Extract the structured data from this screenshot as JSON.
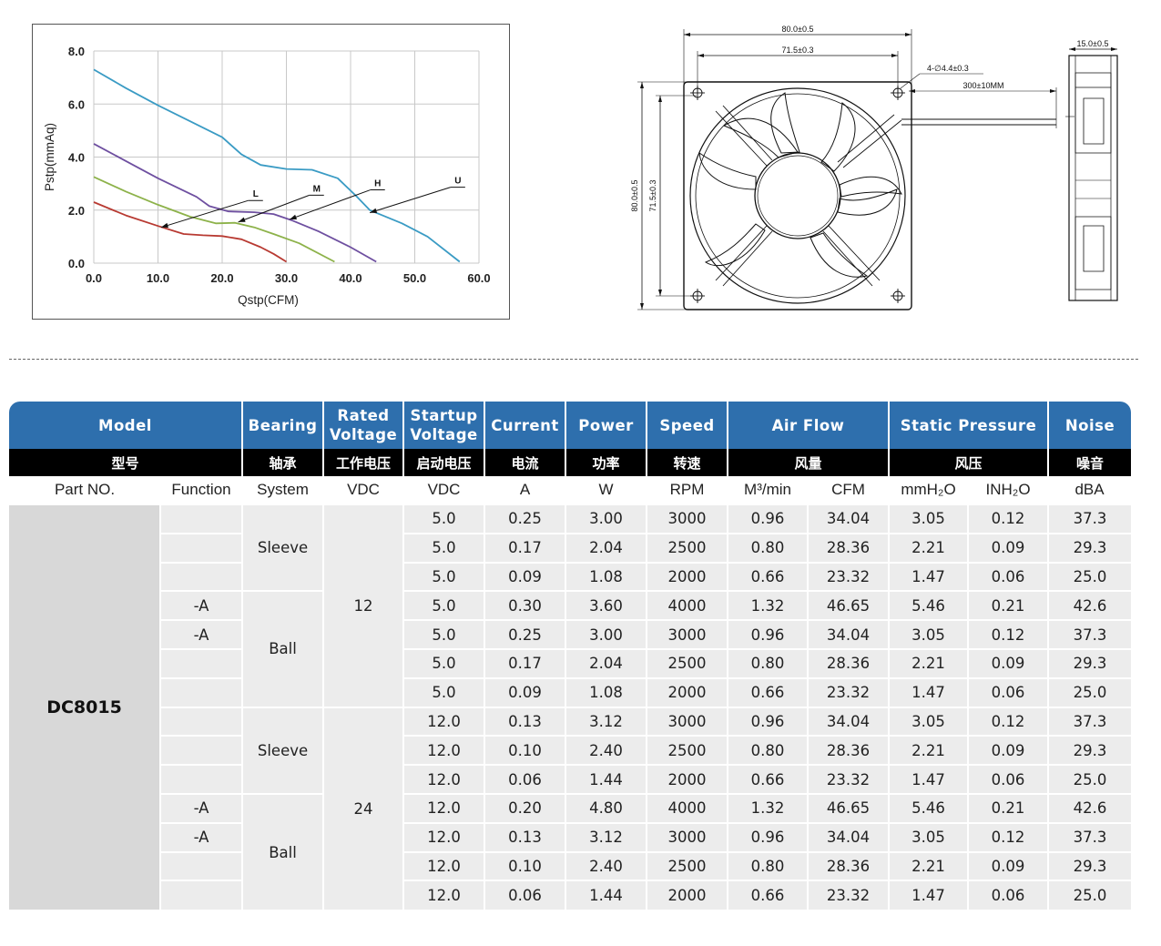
{
  "chart_data": {
    "type": "line",
    "title": "",
    "xlabel": "Qstp(CFM)",
    "ylabel": "Pstp(mmAq)",
    "xlim": [
      0,
      60
    ],
    "ylim": [
      0,
      8
    ],
    "x_ticks": [
      "0.0",
      "10.0",
      "20.0",
      "30.0",
      "40.0",
      "50.0",
      "60.0"
    ],
    "y_ticks": [
      "0.0",
      "2.0",
      "4.0",
      "6.0",
      "8.0"
    ],
    "grid": true,
    "series": [
      {
        "name": "U",
        "label": "U",
        "color": "#3a9bc4",
        "label_at": [
          57,
          3.0
        ],
        "arrow_to": [
          43,
          1.9
        ],
        "points": [
          [
            0,
            7.3
          ],
          [
            5,
            6.6
          ],
          [
            10,
            5.95
          ],
          [
            15,
            5.35
          ],
          [
            20,
            4.75
          ],
          [
            23,
            4.1
          ],
          [
            26,
            3.7
          ],
          [
            30,
            3.55
          ],
          [
            34,
            3.52
          ],
          [
            38,
            3.2
          ],
          [
            41,
            2.5
          ],
          [
            43,
            2.0
          ],
          [
            48,
            1.5
          ],
          [
            52,
            1.0
          ],
          [
            57,
            0.05
          ]
        ]
      },
      {
        "name": "H",
        "label": "H",
        "color": "#6e4fa0",
        "label_at": [
          44.5,
          2.9
        ],
        "arrow_to": [
          30.5,
          1.65
        ],
        "points": [
          [
            0,
            4.5
          ],
          [
            5,
            3.85
          ],
          [
            10,
            3.2
          ],
          [
            16,
            2.5
          ],
          [
            18,
            2.15
          ],
          [
            21,
            1.95
          ],
          [
            25,
            1.92
          ],
          [
            28,
            1.85
          ],
          [
            31,
            1.6
          ],
          [
            35,
            1.2
          ],
          [
            40,
            0.6
          ],
          [
            44,
            0.05
          ]
        ]
      },
      {
        "name": "M",
        "label": "M",
        "color": "#8db24a",
        "label_at": [
          35,
          2.7
        ],
        "arrow_to": [
          22.5,
          1.55
        ],
        "points": [
          [
            0,
            3.25
          ],
          [
            5,
            2.7
          ],
          [
            10,
            2.2
          ],
          [
            15,
            1.75
          ],
          [
            19,
            1.5
          ],
          [
            22,
            1.52
          ],
          [
            25,
            1.35
          ],
          [
            28,
            1.1
          ],
          [
            32,
            0.75
          ],
          [
            37.5,
            0.05
          ]
        ]
      },
      {
        "name": "L",
        "label": "L",
        "color": "#b83a32",
        "label_at": [
          25.5,
          2.5
        ],
        "arrow_to": [
          10.5,
          1.35
        ],
        "points": [
          [
            0,
            2.3
          ],
          [
            5,
            1.8
          ],
          [
            10,
            1.4
          ],
          [
            14,
            1.1
          ],
          [
            17,
            1.05
          ],
          [
            20,
            1.02
          ],
          [
            23,
            0.9
          ],
          [
            26,
            0.6
          ],
          [
            28,
            0.35
          ],
          [
            30,
            0.05
          ]
        ]
      }
    ]
  },
  "drawing": {
    "outer_dim": "80.0±0.5",
    "hole_spacing": "71.5±0.3",
    "hole_callout": "4-∅4.4±0.3",
    "lead_length": "300±10MM",
    "thickness": "15.0±0.5",
    "side_outer": "80.0±0.5",
    "side_spacing": "71.5±0.3"
  },
  "table": {
    "headers": [
      "Model",
      "Bearing",
      "Rated Voltage",
      "Startup Voltage",
      "Current",
      "Power",
      "Speed",
      "Air Flow",
      "Static Pressure",
      "Noise"
    ],
    "headers_cn": [
      "型号",
      "轴承",
      "工作电压",
      "启动电压",
      "电流",
      "功率",
      "转速",
      "风量",
      "风压",
      "噪音"
    ],
    "units": {
      "part_no": "Part NO.",
      "function": "Function",
      "system": "System",
      "rated_vdc": "VDC",
      "startup_vdc": "VDC",
      "current": "A",
      "power": "W",
      "speed": "RPM",
      "airflow_m3": "M³/min",
      "airflow_cfm": "CFM",
      "pressure_mm": "mmH₂O",
      "pressure_in": "INH₂O",
      "noise": "dBA"
    },
    "model": "DC8015",
    "groups": [
      {
        "bearing": "Sleeve",
        "rated": "12"
      },
      {
        "bearing": "Ball",
        "rated": ""
      },
      {
        "bearing": "Sleeve",
        "rated": "24"
      },
      {
        "bearing": "Ball",
        "rated": ""
      }
    ],
    "rows": [
      {
        "fn": "",
        "startup": "5.0",
        "current": "0.25",
        "power": "3.00",
        "speed": "3000",
        "m3": "0.96",
        "cfm": "34.04",
        "mm": "3.05",
        "inch": "0.12",
        "dba": "37.3"
      },
      {
        "fn": "",
        "startup": "5.0",
        "current": "0.17",
        "power": "2.04",
        "speed": "2500",
        "m3": "0.80",
        "cfm": "28.36",
        "mm": "2.21",
        "inch": "0.09",
        "dba": "29.3"
      },
      {
        "fn": "",
        "startup": "5.0",
        "current": "0.09",
        "power": "1.08",
        "speed": "2000",
        "m3": "0.66",
        "cfm": "23.32",
        "mm": "1.47",
        "inch": "0.06",
        "dba": "25.0"
      },
      {
        "fn": "-A",
        "startup": "5.0",
        "current": "0.30",
        "power": "3.60",
        "speed": "4000",
        "m3": "1.32",
        "cfm": "46.65",
        "mm": "5.46",
        "inch": "0.21",
        "dba": "42.6"
      },
      {
        "fn": "-A",
        "startup": "5.0",
        "current": "0.25",
        "power": "3.00",
        "speed": "3000",
        "m3": "0.96",
        "cfm": "34.04",
        "mm": "3.05",
        "inch": "0.12",
        "dba": "37.3"
      },
      {
        "fn": "",
        "startup": "5.0",
        "current": "0.17",
        "power": "2.04",
        "speed": "2500",
        "m3": "0.80",
        "cfm": "28.36",
        "mm": "2.21",
        "inch": "0.09",
        "dba": "29.3"
      },
      {
        "fn": "",
        "startup": "5.0",
        "current": "0.09",
        "power": "1.08",
        "speed": "2000",
        "m3": "0.66",
        "cfm": "23.32",
        "mm": "1.47",
        "inch": "0.06",
        "dba": "25.0"
      },
      {
        "fn": "",
        "startup": "12.0",
        "current": "0.13",
        "power": "3.12",
        "speed": "3000",
        "m3": "0.96",
        "cfm": "34.04",
        "mm": "3.05",
        "inch": "0.12",
        "dba": "37.3"
      },
      {
        "fn": "",
        "startup": "12.0",
        "current": "0.10",
        "power": "2.40",
        "speed": "2500",
        "m3": "0.80",
        "cfm": "28.36",
        "mm": "2.21",
        "inch": "0.09",
        "dba": "29.3"
      },
      {
        "fn": "",
        "startup": "12.0",
        "current": "0.06",
        "power": "1.44",
        "speed": "2000",
        "m3": "0.66",
        "cfm": "23.32",
        "mm": "1.47",
        "inch": "0.06",
        "dba": "25.0"
      },
      {
        "fn": "-A",
        "startup": "12.0",
        "current": "0.20",
        "power": "4.80",
        "speed": "4000",
        "m3": "1.32",
        "cfm": "46.65",
        "mm": "5.46",
        "inch": "0.21",
        "dba": "42.6"
      },
      {
        "fn": "-A",
        "startup": "12.0",
        "current": "0.13",
        "power": "3.12",
        "speed": "3000",
        "m3": "0.96",
        "cfm": "34.04",
        "mm": "3.05",
        "inch": "0.12",
        "dba": "37.3"
      },
      {
        "fn": "",
        "startup": "12.0",
        "current": "0.10",
        "power": "2.40",
        "speed": "2500",
        "m3": "0.80",
        "cfm": "28.36",
        "mm": "2.21",
        "inch": "0.09",
        "dba": "29.3"
      },
      {
        "fn": "",
        "startup": "12.0",
        "current": "0.06",
        "power": "1.44",
        "speed": "2000",
        "m3": "0.66",
        "cfm": "23.32",
        "mm": "1.47",
        "inch": "0.06",
        "dba": "25.0"
      }
    ]
  }
}
